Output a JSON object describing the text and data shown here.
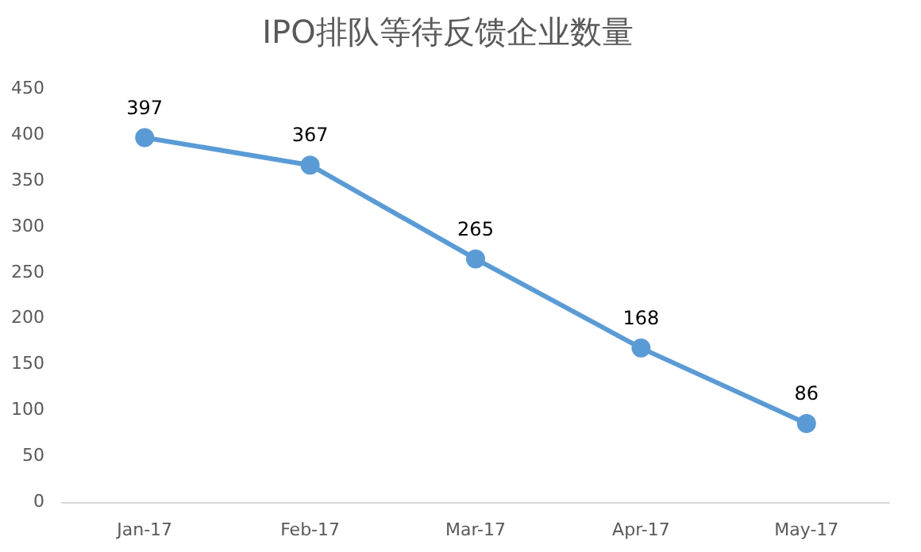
{
  "chart_data": {
    "type": "line",
    "title": "IPO排队等待反馈企业数量",
    "categories": [
      "Jan-17",
      "Feb-17",
      "Mar-17",
      "Apr-17",
      "May-17"
    ],
    "series": [
      {
        "color": "#5b9bd5",
        "values": [
          397,
          367,
          265,
          168,
          86
        ]
      }
    ],
    "ylim": [
      0,
      450
    ],
    "yticks": [
      0,
      50,
      100,
      150,
      200,
      250,
      300,
      350,
      400,
      450
    ],
    "grid": false,
    "legend": false,
    "marker": "circle",
    "line_style": "solid",
    "data_labels": true
  }
}
